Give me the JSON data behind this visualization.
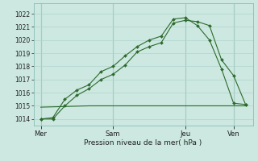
{
  "background_color": "#cce8e0",
  "grid_color": "#b0d4cc",
  "line_color": "#2d6a2d",
  "title": "Pression niveau de la mer( hPa )",
  "ylim": [
    1013.5,
    1022.8
  ],
  "yticks": [
    1014,
    1015,
    1016,
    1017,
    1018,
    1019,
    1020,
    1021,
    1022
  ],
  "day_labels": [
    "Mer",
    "Sam",
    "Jeu",
    "Ven"
  ],
  "day_positions": [
    0,
    30,
    60,
    80
  ],
  "xlim": [
    -3,
    88
  ],
  "line1_x": [
    0,
    5,
    10,
    15,
    20,
    25,
    30,
    35,
    40,
    45,
    50,
    55,
    60,
    65,
    70,
    75,
    80,
    85
  ],
  "line1_y": [
    1014.0,
    1014.1,
    1015.5,
    1016.2,
    1016.6,
    1017.6,
    1018.0,
    1018.8,
    1019.5,
    1020.0,
    1020.3,
    1021.6,
    1021.7,
    1021.1,
    1020.0,
    1017.8,
    1015.2,
    1015.1
  ],
  "line2_x": [
    0,
    5,
    10,
    15,
    20,
    25,
    30,
    35,
    40,
    45,
    50,
    55,
    60,
    65,
    70,
    75,
    80,
    85
  ],
  "line2_y": [
    1014.0,
    1014.0,
    1015.0,
    1015.8,
    1016.3,
    1017.0,
    1017.4,
    1018.1,
    1019.1,
    1019.5,
    1019.8,
    1021.3,
    1021.5,
    1021.4,
    1021.1,
    1018.5,
    1017.3,
    1015.1
  ],
  "line3_x": [
    0,
    10,
    20,
    30,
    40,
    50,
    60,
    70,
    80,
    85
  ],
  "line3_y": [
    1014.9,
    1014.95,
    1015.0,
    1015.0,
    1015.0,
    1015.0,
    1015.0,
    1015.0,
    1015.0,
    1015.0
  ],
  "marker_size": 2.0,
  "line_width": 0.8,
  "ytick_fontsize": 5.5,
  "xtick_fontsize": 6.0,
  "xlabel_fontsize": 6.5
}
